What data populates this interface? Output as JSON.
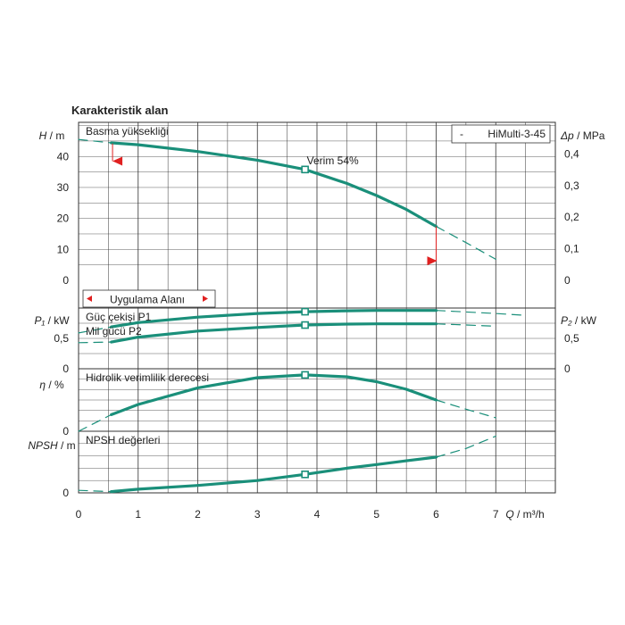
{
  "page": {
    "title": "Karakteristik alan"
  },
  "colors": {
    "curve": "#1a8f7a",
    "marker": "#e02020",
    "grid": "#333333",
    "text": "#222222"
  },
  "chart_data": {
    "type": "line",
    "x_axis": {
      "label": "Q / m³/h",
      "ticks": [
        "0",
        "1",
        "2",
        "3",
        "4",
        "5",
        "6",
        "7"
      ],
      "range": [
        0,
        8
      ]
    },
    "legend": {
      "text": "HiMulti-3-45",
      "marker": "-",
      "placement": "top-right"
    },
    "operating_point": {
      "q": 3.8
    },
    "panels": [
      {
        "id": "head",
        "title": "Basma yüksekliği",
        "ylabel_left_sym": "H",
        "ylabel_left_unit": "/ m",
        "ylabel_right_sym": "Δp",
        "ylabel_right_unit": "/ MPa",
        "ylim": [
          0,
          55
        ],
        "left_ticks": [
          {
            "v": 0,
            "t": "0"
          },
          {
            "v": 10,
            "t": "10"
          },
          {
            "v": 20,
            "t": "20"
          },
          {
            "v": 30,
            "t": "30"
          },
          {
            "v": 40,
            "t": "40"
          }
        ],
        "right_ticks": [
          {
            "v": 0,
            "t": "0"
          },
          {
            "v": 10.2,
            "t": "0,1"
          },
          {
            "v": 20.4,
            "t": "0,2"
          },
          {
            "v": 30.6,
            "t": "0,3"
          },
          {
            "v": 40.8,
            "t": "0,4"
          }
        ],
        "series": [
          {
            "solid": [
              [
                0.55,
                44.4
              ],
              [
                1,
                43.8
              ],
              [
                2,
                41.6
              ],
              [
                3,
                38.8
              ],
              [
                3.8,
                35.8
              ],
              [
                4.5,
                31.3
              ],
              [
                5,
                27.4
              ],
              [
                5.5,
                22.9
              ],
              [
                6,
                17.4
              ]
            ],
            "dash_before": [
              [
                0,
                45.5
              ],
              [
                0.55,
                44.4
              ]
            ],
            "dash_after": [
              [
                6,
                17.4
              ],
              [
                6.5,
                12.2
              ],
              [
                7,
                6.8
              ]
            ]
          }
        ],
        "markers": [
          {
            "q": 3.8,
            "v": 35.8
          }
        ],
        "annotation": {
          "text": "Verim  54%",
          "q": 3.8,
          "v": 35.8
        },
        "range_markers": [
          {
            "q": 0.6,
            "v": 38.5,
            "dir": "left"
          },
          {
            "q": 6.0,
            "v": 6.3,
            "dir": "right"
          }
        ],
        "range_label": "Uygulama Alanı"
      },
      {
        "id": "power",
        "title": "",
        "ylabel_left_sym": "P₁",
        "ylabel_left_unit": "/ kW",
        "ylabel_right_sym": "P₂",
        "ylabel_right_unit": "/ kW",
        "ylim": [
          0,
          1
        ],
        "left_ticks": [
          {
            "v": 0,
            "t": "0"
          },
          {
            "v": 0.5,
            "t": "0,5"
          }
        ],
        "right_ticks": [
          {
            "v": 0,
            "t": "0"
          },
          {
            "v": 0.5,
            "t": "0,5"
          }
        ],
        "labels": [
          "Güç çekişi P1",
          "Mil gücü P2"
        ],
        "series": [
          {
            "name": "Güç çekişi P1",
            "solid": [
              [
                0.55,
                0.69
              ],
              [
                1,
                0.76
              ],
              [
                2,
                0.85
              ],
              [
                3,
                0.91
              ],
              [
                3.8,
                0.94
              ],
              [
                4.5,
                0.955
              ],
              [
                5,
                0.96
              ],
              [
                6,
                0.96
              ]
            ],
            "dash_before": [
              [
                0,
                0.59
              ],
              [
                0.55,
                0.69
              ]
            ],
            "dash_after": [
              [
                6,
                0.96
              ],
              [
                7,
                0.91
              ],
              [
                7.5,
                0.88
              ]
            ]
          },
          {
            "name": "Mil gücü P2",
            "solid": [
              [
                0.55,
                0.44
              ],
              [
                1,
                0.52
              ],
              [
                2,
                0.62
              ],
              [
                3,
                0.68
              ],
              [
                3.8,
                0.72
              ],
              [
                4.5,
                0.735
              ],
              [
                5,
                0.74
              ],
              [
                6,
                0.74
              ]
            ],
            "dash_before": [
              [
                0,
                0.43
              ],
              [
                0.55,
                0.44
              ]
            ],
            "dash_after": [
              [
                6,
                0.74
              ],
              [
                6.5,
                0.72
              ],
              [
                7,
                0.7
              ]
            ]
          }
        ],
        "markers": [
          {
            "q": 3.8,
            "v": 0.94
          },
          {
            "q": 3.8,
            "v": 0.72
          }
        ]
      },
      {
        "id": "eff",
        "title": "Hidrolik verimlilik derecesi",
        "ylabel_left_sym": "η",
        "ylabel_left_unit": "/ %",
        "ylabel_right_sym": "",
        "ylabel_right_unit": "",
        "ylim": [
          0,
          60
        ],
        "left_ticks": [
          {
            "v": 0,
            "t": "0"
          }
        ],
        "right_ticks": [],
        "series": [
          {
            "solid": [
              [
                0.55,
                15.9
              ],
              [
                1,
                25.7
              ],
              [
                2,
                41.7
              ],
              [
                3,
                51.4
              ],
              [
                3.8,
                54.1
              ],
              [
                4.5,
                52.3
              ],
              [
                5,
                47.6
              ],
              [
                5.5,
                40.3
              ],
              [
                6,
                30.0
              ]
            ],
            "dash_before": [
              [
                0,
                0
              ],
              [
                0.55,
                15.9
              ]
            ],
            "dash_after": [
              [
                6,
                30.0
              ],
              [
                6.5,
                21.2
              ],
              [
                7,
                12.9
              ]
            ]
          }
        ],
        "markers": [
          {
            "q": 3.8,
            "v": 54.1
          }
        ]
      },
      {
        "id": "npsh",
        "title": "NPSH değerleri",
        "ylabel_left_sym": "NPSH",
        "ylabel_left_unit": "/ m",
        "ylabel_right_sym": "",
        "ylabel_right_unit": "",
        "ylim": [
          0,
          5
        ],
        "left_ticks": [
          {
            "v": 0,
            "t": "0"
          }
        ],
        "right_ticks": [],
        "series": [
          {
            "solid": [
              [
                0.55,
                0.1
              ],
              [
                1,
                0.3
              ],
              [
                2,
                0.6
              ],
              [
                3,
                1.0
              ],
              [
                3.8,
                1.5
              ],
              [
                4.5,
                2.0
              ],
              [
                5,
                2.3
              ],
              [
                5.5,
                2.6
              ],
              [
                6,
                2.9
              ]
            ],
            "dash_before": [
              [
                0,
                0.2
              ],
              [
                0.55,
                0.1
              ]
            ],
            "dash_after": [
              [
                6,
                2.9
              ],
              [
                6.5,
                3.6
              ],
              [
                7,
                4.6
              ]
            ]
          }
        ],
        "markers": [
          {
            "q": 3.8,
            "v": 1.5
          }
        ]
      }
    ]
  }
}
